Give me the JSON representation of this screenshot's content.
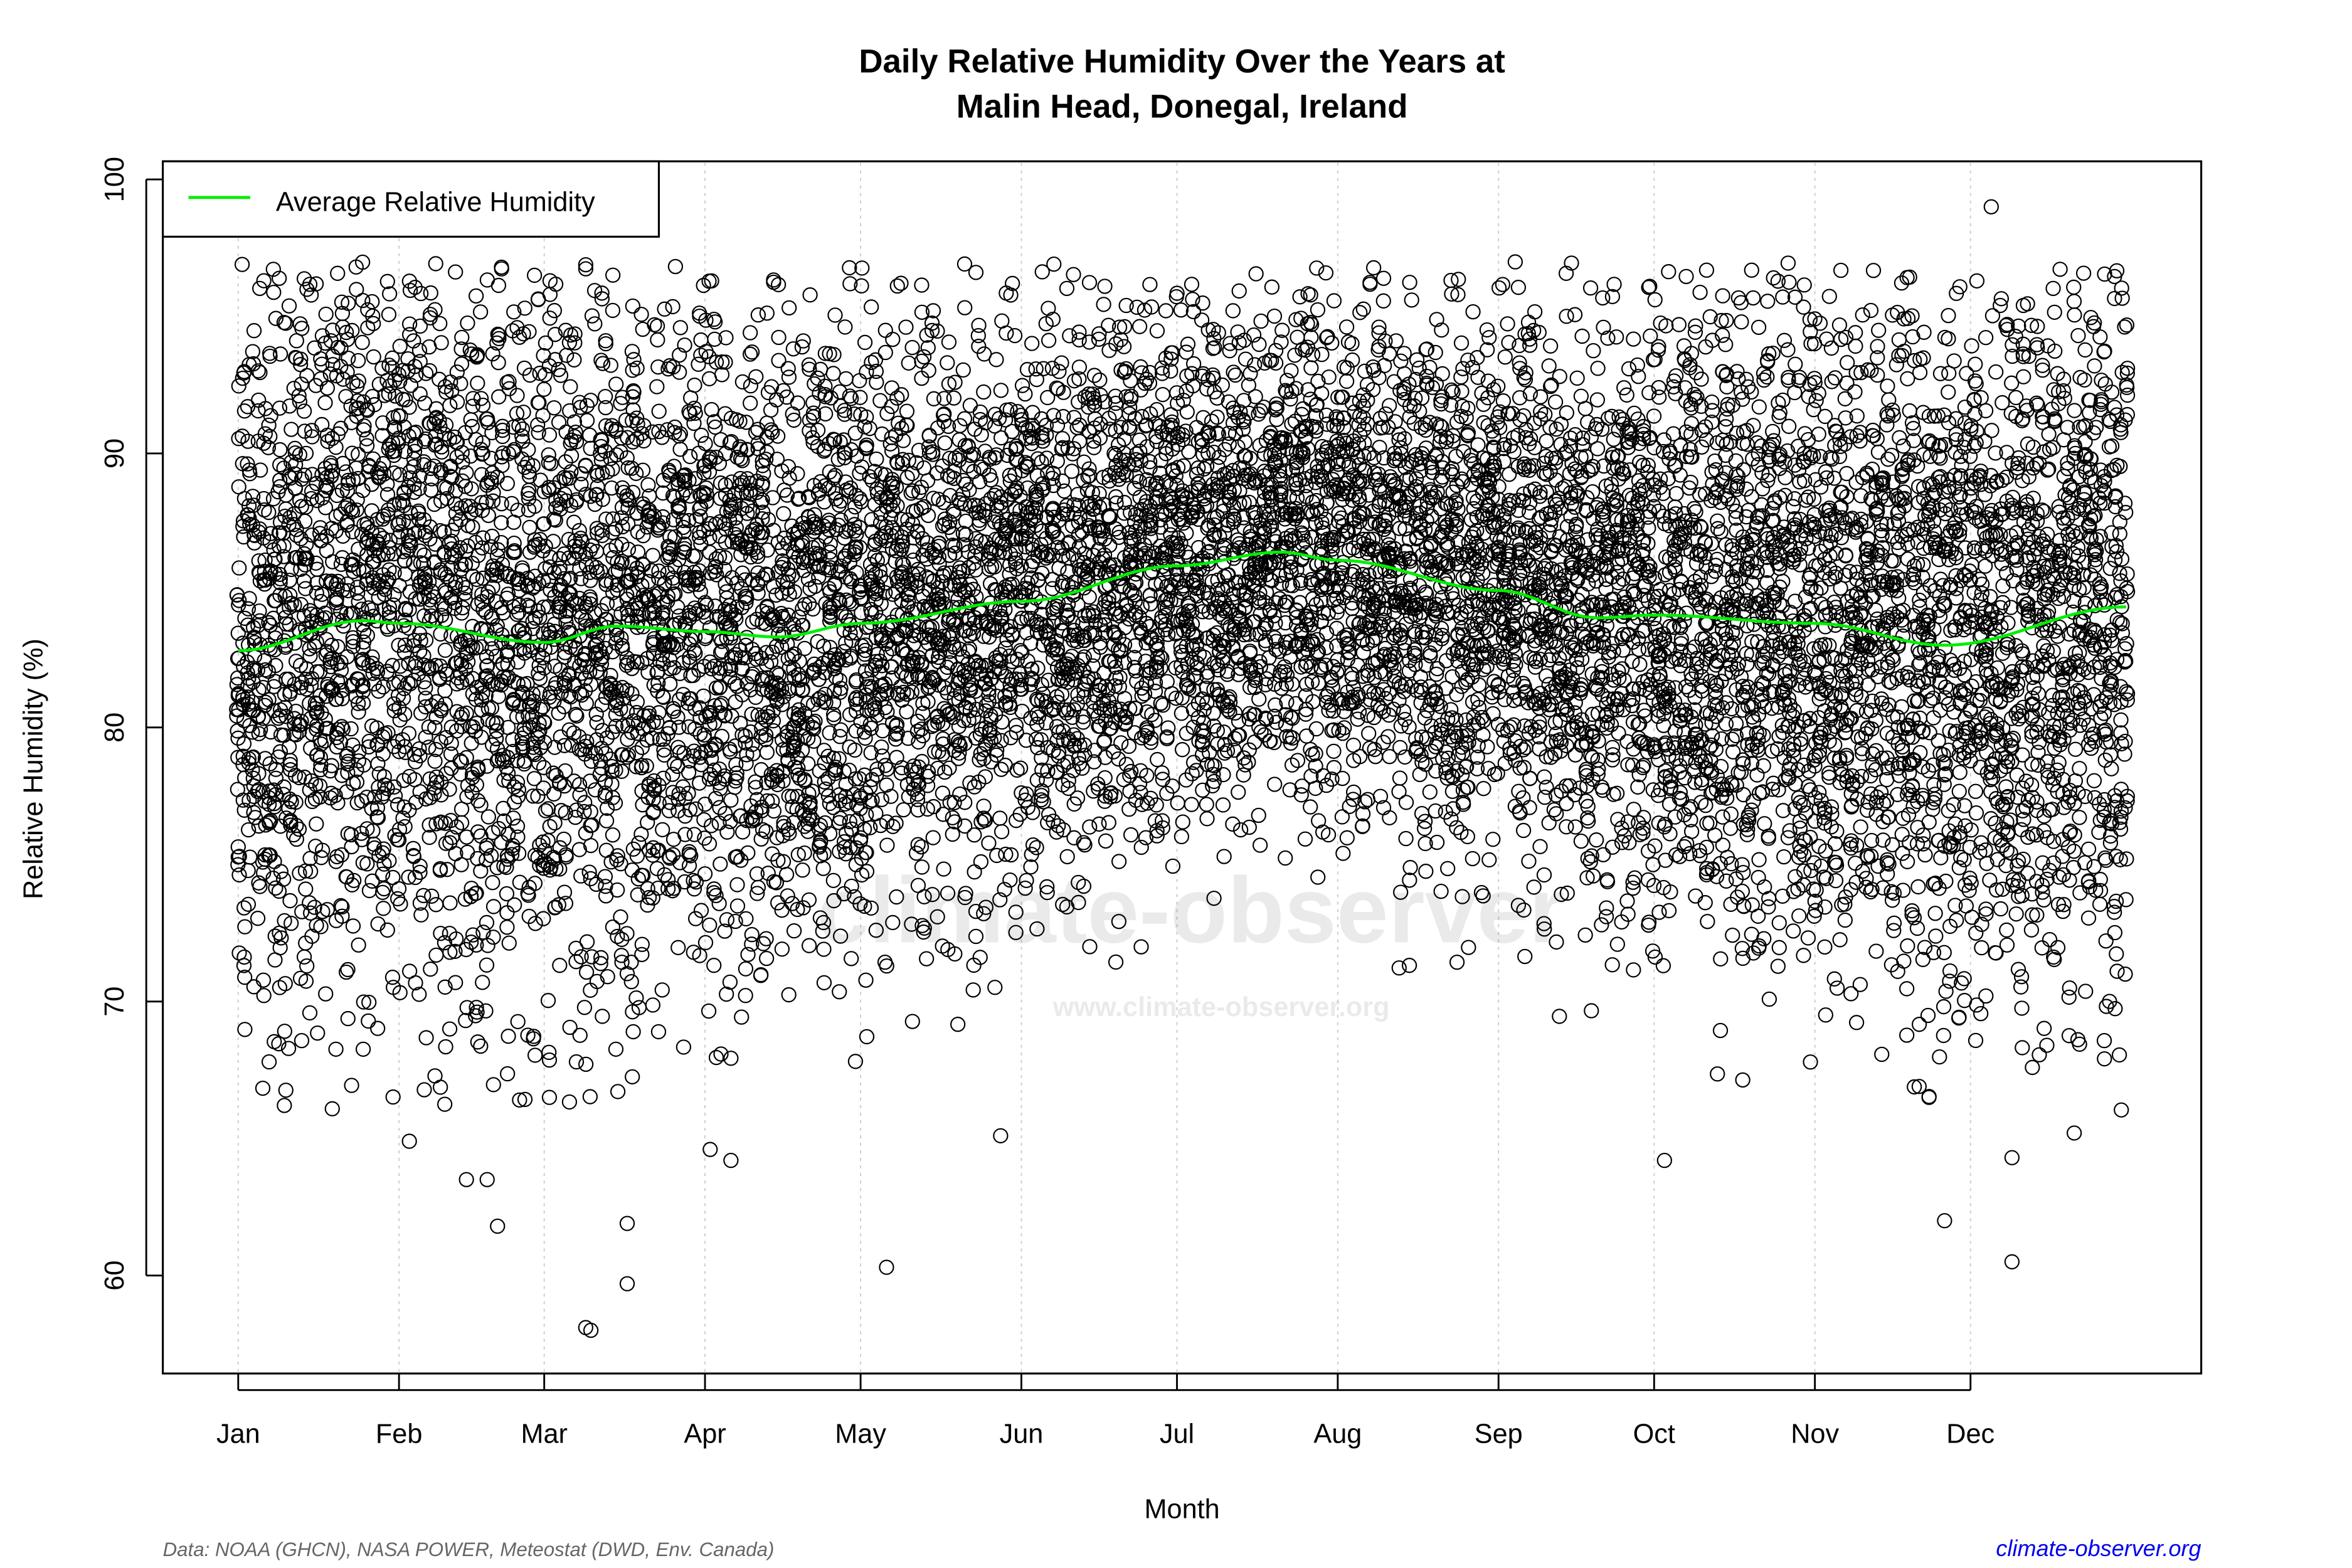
{
  "chart_data": {
    "type": "scatter",
    "title": [
      "Daily Relative Humidity Over the Years at",
      "Malin Head, Donegal, Ireland"
    ],
    "xlabel": "Month",
    "ylabel": "Relative Humidity  (%)",
    "x_unit": "day of year",
    "xlim": [
      1,
      365
    ],
    "ylim": [
      57,
      100
    ],
    "x_ticks": [
      {
        "label": "Jan",
        "day": 1
      },
      {
        "label": "Feb",
        "day": 32
      },
      {
        "label": "Mar",
        "day": 60
      },
      {
        "label": "Apr",
        "day": 91
      },
      {
        "label": "May",
        "day": 121
      },
      {
        "label": "Jun",
        "day": 152
      },
      {
        "label": "Jul",
        "day": 182
      },
      {
        "label": "Aug",
        "day": 213
      },
      {
        "label": "Sep",
        "day": 244
      },
      {
        "label": "Oct",
        "day": 274
      },
      {
        "label": "Nov",
        "day": 305
      },
      {
        "label": "Dec",
        "day": 335
      }
    ],
    "y_ticks": [
      60,
      70,
      80,
      90,
      100
    ],
    "grid": "vertical dotted at month starts",
    "legend": {
      "position": "top-left",
      "entries": [
        {
          "label": "Average Relative Humidity",
          "color": "#00ee00"
        }
      ]
    },
    "average_series": {
      "name": "Average Relative Humidity",
      "color": "#00ee00",
      "points": [
        [
          1,
          82.8
        ],
        [
          25,
          83.9
        ],
        [
          32,
          83.8
        ],
        [
          60,
          83.1
        ],
        [
          74,
          83.7
        ],
        [
          91,
          83.5
        ],
        [
          105,
          83.3
        ],
        [
          121,
          83.8
        ],
        [
          152,
          84.6
        ],
        [
          182,
          85.9
        ],
        [
          202,
          86.4
        ],
        [
          213,
          86.1
        ],
        [
          244,
          85.0
        ],
        [
          263,
          84.0
        ],
        [
          274,
          84.1
        ],
        [
          305,
          83.8
        ],
        [
          330,
          83.0
        ],
        [
          365,
          84.4
        ]
      ]
    },
    "daily_points_summary": {
      "typical_range": [
        67,
        97
      ],
      "notable_points": [
        [
          68,
          58.1
        ],
        [
          69,
          58.0
        ],
        [
          76,
          59.7
        ],
        [
          126,
          60.3
        ],
        [
          343,
          60.5
        ],
        [
          330,
          62.0
        ],
        [
          339,
          99.0
        ],
        [
          45,
          63.5
        ],
        [
          49,
          63.5
        ],
        [
          51,
          61.8
        ],
        [
          34,
          64.9
        ],
        [
          276,
          64.2
        ],
        [
          148,
          65.1
        ],
        [
          96,
          64.2
        ],
        [
          61,
          66.5
        ],
        [
          76,
          61.9
        ],
        [
          92,
          64.6
        ],
        [
          343,
          64.3
        ],
        [
          355,
          65.2
        ],
        [
          327,
          66.5
        ]
      ]
    },
    "point_color": "#000000"
  },
  "watermark": {
    "logo_text": "climate-observer",
    "url": "www.climate-observer.org"
  },
  "footer": {
    "source": "Data: NOAA (GHCN), NASA POWER, Meteostat (DWD, Env. Canada)",
    "site": "climate-observer.org"
  }
}
